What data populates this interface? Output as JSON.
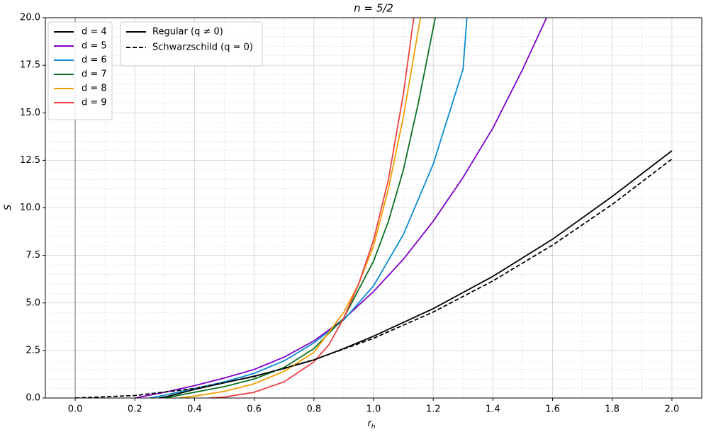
{
  "chart_data": {
    "type": "line",
    "title": "n = 5/2",
    "xlabel": {
      "main": "r",
      "sub": "h"
    },
    "ylabel": "S",
    "xlim": [
      -0.1,
      2.1
    ],
    "ylim": [
      0,
      20
    ],
    "xticks": [
      {
        "value": 0,
        "label": "0.0"
      },
      0.2,
      0.4,
      0.6,
      0.8,
      {
        "value": 1,
        "label": "1.0"
      },
      1.2,
      1.4,
      1.6,
      1.8,
      {
        "value": 2,
        "label": "2.0"
      }
    ],
    "yticks": [
      {
        "value": 0,
        "label": "0.0"
      },
      2.5,
      {
        "value": 5,
        "label": "5.0"
      },
      7.5,
      {
        "value": 10,
        "label": "10.0"
      },
      12.5,
      {
        "value": 15,
        "label": "15.0"
      },
      17.5,
      {
        "value": 20,
        "label": "20.0"
      }
    ],
    "grid": true,
    "axvline": 0,
    "series": [
      {
        "name": "d = 4",
        "color": "#000000",
        "x": [
          0.28,
          0.3,
          0.4,
          0.5,
          0.6,
          0.7,
          0.8,
          0.9,
          1.0,
          1.2,
          1.4,
          1.6,
          1.8,
          2.0
        ],
        "values": [
          0,
          0.05,
          0.45,
          0.8,
          1.15,
          1.55,
          2.0,
          2.6,
          3.25,
          4.7,
          6.4,
          8.35,
          10.6,
          13.0
        ]
      },
      {
        "name": "d = 5",
        "color": "#8000c8",
        "x": [
          0.2,
          0.3,
          0.4,
          0.5,
          0.6,
          0.7,
          0.8,
          0.9,
          1.0,
          1.1,
          1.2,
          1.3,
          1.4,
          1.5,
          1.58
        ],
        "values": [
          0,
          0.3,
          0.65,
          1.05,
          1.5,
          2.15,
          3.0,
          4.15,
          5.6,
          7.3,
          9.3,
          11.6,
          14.2,
          17.3,
          20
        ]
      },
      {
        "name": "d = 6",
        "color": "#0a8cd0",
        "x": [
          0.25,
          0.3,
          0.4,
          0.5,
          0.6,
          0.7,
          0.8,
          0.9,
          1.0,
          1.1,
          1.2,
          1.3,
          1.313
        ],
        "values": [
          0,
          0.15,
          0.5,
          0.85,
          1.3,
          1.95,
          2.9,
          4.1,
          5.9,
          8.6,
          12.3,
          17.3,
          20
        ]
      },
      {
        "name": "d = 7",
        "color": "#0a7020",
        "x": [
          0.3,
          0.4,
          0.5,
          0.6,
          0.7,
          0.8,
          0.9,
          1.0,
          1.05,
          1.1,
          1.15,
          1.207
        ],
        "values": [
          0,
          0.3,
          0.6,
          1.0,
          1.6,
          2.6,
          4.2,
          7.2,
          9.3,
          12.0,
          15.5,
          20
        ]
      },
      {
        "name": "d = 8",
        "color": "#f0a000",
        "x": [
          0.35,
          0.4,
          0.5,
          0.6,
          0.7,
          0.8,
          0.9,
          0.95,
          1.0,
          1.05,
          1.1,
          1.157
        ],
        "values": [
          0,
          0.1,
          0.35,
          0.75,
          1.4,
          2.4,
          4.5,
          6.0,
          8.0,
          11.0,
          14.8,
          20
        ]
      },
      {
        "name": "d = 9",
        "color": "#f04040",
        "x": [
          0.45,
          0.5,
          0.6,
          0.7,
          0.8,
          0.85,
          0.9,
          0.95,
          1.0,
          1.05,
          1.1,
          1.135
        ],
        "values": [
          0,
          0.05,
          0.3,
          0.85,
          1.9,
          2.8,
          4.2,
          6.0,
          8.3,
          11.5,
          16.0,
          20
        ]
      },
      {
        "name": "Schwarzschild",
        "color": "#000000",
        "dashed": true,
        "x": [
          0,
          0.2,
          0.4,
          0.6,
          0.8,
          1.0,
          1.2,
          1.4,
          1.6,
          1.8,
          2.0
        ],
        "values": [
          0,
          0.13,
          0.5,
          1.13,
          2.01,
          3.14,
          4.52,
          6.16,
          8.04,
          10.18,
          12.57
        ]
      }
    ],
    "style_legend": [
      {
        "label": "Regular (q ≠ 0)",
        "dashed": false
      },
      {
        "label": "Schwarzschild (q = 0)",
        "dashed": true
      }
    ]
  }
}
